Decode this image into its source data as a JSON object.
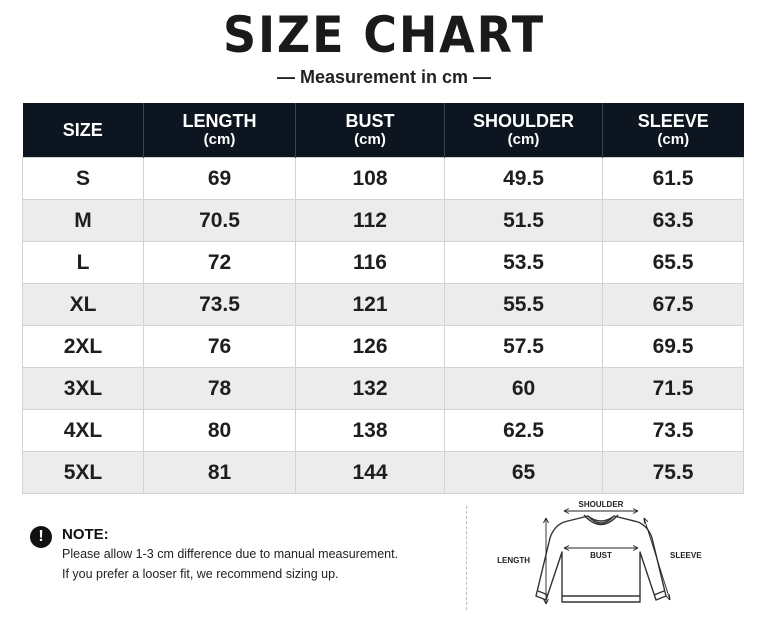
{
  "header": {
    "title": "SIZE CHART",
    "subtitle": "— Measurement in cm —"
  },
  "table": {
    "columns": [
      {
        "label": "SIZE",
        "unit": ""
      },
      {
        "label": "LENGTH",
        "unit": "(cm)"
      },
      {
        "label": "BUST",
        "unit": "(cm)"
      },
      {
        "label": "SHOULDER",
        "unit": "(cm)"
      },
      {
        "label": "SLEEVE",
        "unit": "(cm)"
      }
    ],
    "rows": [
      [
        "S",
        "69",
        "108",
        "49.5",
        "61.5"
      ],
      [
        "M",
        "70.5",
        "112",
        "51.5",
        "63.5"
      ],
      [
        "L",
        "72",
        "116",
        "53.5",
        "65.5"
      ],
      [
        "XL",
        "73.5",
        "121",
        "55.5",
        "67.5"
      ],
      [
        "2XL",
        "76",
        "126",
        "57.5",
        "69.5"
      ],
      [
        "3XL",
        "78",
        "132",
        "60",
        "71.5"
      ],
      [
        "4XL",
        "80",
        "138",
        "62.5",
        "73.5"
      ],
      [
        "5XL",
        "81",
        "144",
        "65",
        "75.5"
      ]
    ]
  },
  "note": {
    "icon": "exclamation-icon",
    "title": "NOTE:",
    "lines": [
      "Please allow 1-3 cm difference due to manual measurement.",
      "If you prefer a looser fit, we recommend sizing up."
    ]
  },
  "diagram": {
    "icon": "sweater-icon",
    "labels": {
      "shoulder": "SHOULDER",
      "bust": "BUST",
      "length": "LENGTH",
      "sleeve": "SLEEVE"
    }
  },
  "colors": {
    "header_bg": "#0d1520",
    "header_text": "#ffffff",
    "row_alt": "#ececec",
    "text": "#1e1e1e"
  }
}
